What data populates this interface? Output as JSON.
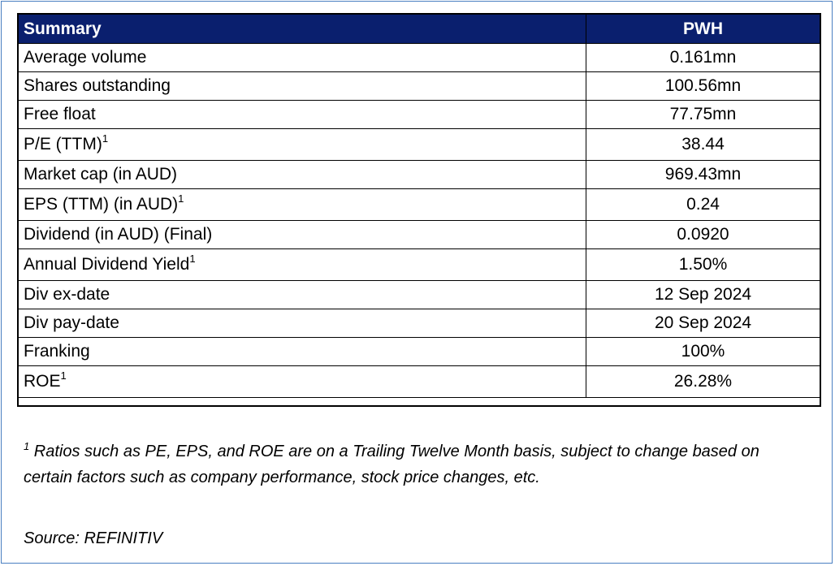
{
  "table": {
    "header": {
      "label": "Summary",
      "value": "PWH"
    },
    "rows": [
      {
        "label": "Average volume",
        "sup": "",
        "value": "0.161mn"
      },
      {
        "label": "Shares outstanding",
        "sup": "",
        "value": "100.56mn"
      },
      {
        "label": "Free float",
        "sup": "",
        "value": "77.75mn"
      },
      {
        "label": "P/E (TTM)",
        "sup": "1",
        "value": "38.44"
      },
      {
        "label": "Market cap (in AUD)",
        "sup": "",
        "value": "969.43mn"
      },
      {
        "label": "EPS (TTM) (in AUD)",
        "sup": "1",
        "value": "0.24"
      },
      {
        "label": "Dividend (in AUD) (Final)",
        "sup": "",
        "value": "0.0920"
      },
      {
        "label": "Annual Dividend Yield",
        "sup": "1",
        "value": "1.50%"
      },
      {
        "label": "Div ex-date",
        "sup": "",
        "value": "12 Sep 2024"
      },
      {
        "label": "Div pay-date",
        "sup": "",
        "value": "20 Sep 2024"
      },
      {
        "label": "Franking",
        "sup": "",
        "value": "100%"
      },
      {
        "label": "ROE",
        "sup": "1",
        "value": "26.28%"
      }
    ]
  },
  "footnote": {
    "marker": "1",
    "text": " Ratios such as PE, EPS, and ROE are on a Trailing Twelve Month basis, subject to change based on certain factors such as company performance, stock price changes, etc."
  },
  "source": "Source: REFINITIV",
  "colors": {
    "header_bg": "#0a1f6e",
    "header_text": "#ffffff",
    "frame_border": "#4a7fc1"
  }
}
